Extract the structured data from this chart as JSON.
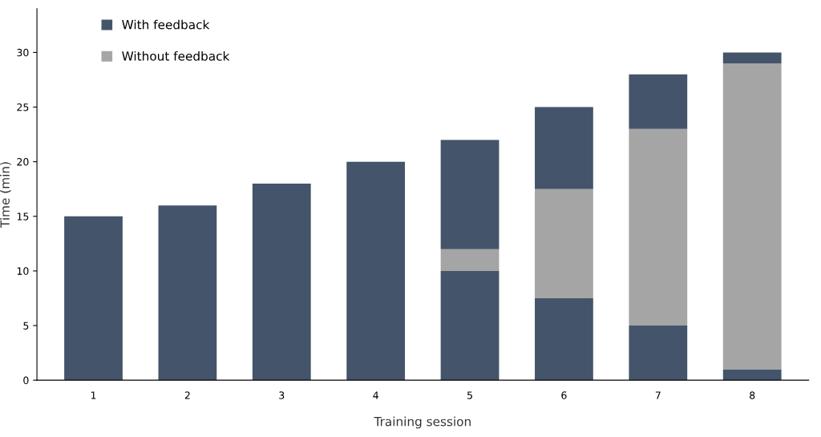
{
  "chart_data": {
    "type": "bar",
    "stacked": true,
    "xlabel": "Training session",
    "ylabel": "Time (min)",
    "categories": [
      "1",
      "2",
      "3",
      "4",
      "5",
      "6",
      "7",
      "8"
    ],
    "series": [
      {
        "name": "With feedback",
        "color": "#44546a",
        "values": [
          15,
          16,
          18,
          20,
          10,
          7.5,
          5,
          1
        ]
      },
      {
        "name": "Without feedback",
        "color": "#a5a5a5",
        "values": [
          0,
          0,
          0,
          0,
          2,
          10,
          18,
          28
        ]
      },
      {
        "color": "#44546a",
        "values": [
          0,
          0,
          0,
          0,
          10,
          7.5,
          5,
          1
        ]
      }
    ],
    "ylim": [
      0,
      34
    ],
    "yticks": [
      0,
      5,
      10,
      15,
      20,
      25,
      30
    ],
    "grid": false,
    "legend": "top left"
  }
}
